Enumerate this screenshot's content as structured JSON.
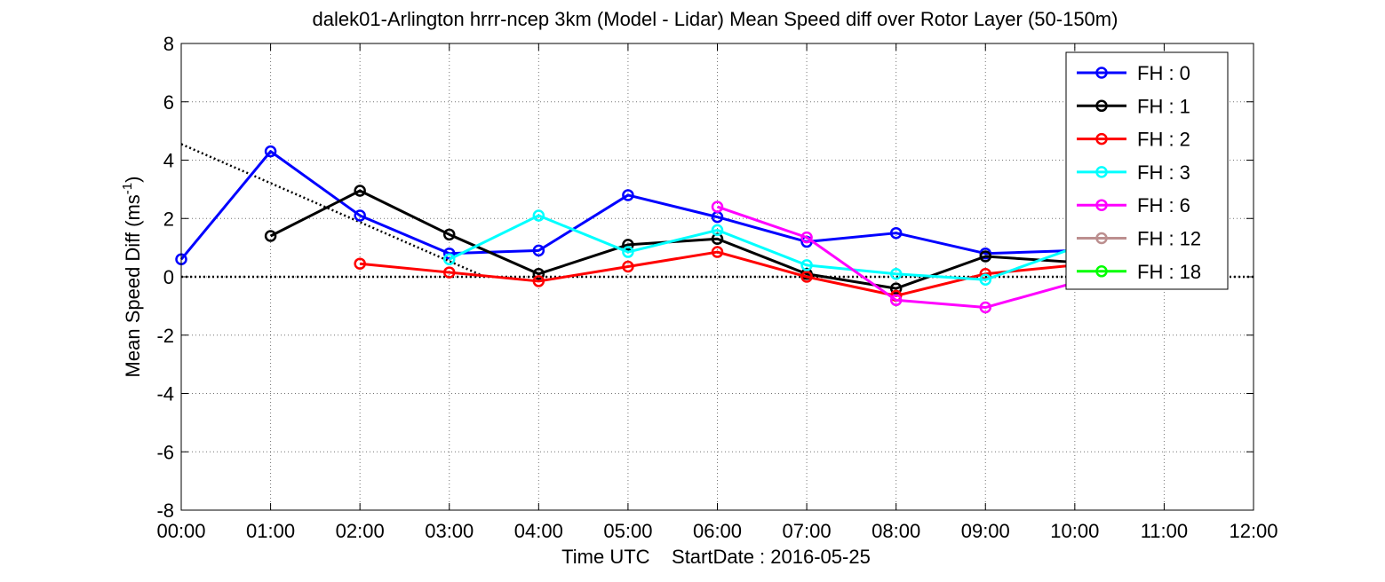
{
  "chart_data": {
    "type": "line",
    "title": "dalek01-Arlington hrrr-ncep 3km (Model - Lidar) Mean Speed diff over Rotor Layer (50-150m)",
    "xlabel": "Time UTC    StartDate : 2016-05-25",
    "ylabel_main": "Mean Speed Diff (ms",
    "ylabel_sup": "-1",
    "ylabel_tail": ")",
    "xlim": [
      0,
      12
    ],
    "ylim": [
      -8,
      8
    ],
    "x_ticks": [
      0,
      1,
      2,
      3,
      4,
      5,
      6,
      7,
      8,
      9,
      10,
      11,
      12
    ],
    "x_tick_labels": [
      "00:00",
      "01:00",
      "02:00",
      "03:00",
      "04:00",
      "05:00",
      "06:00",
      "07:00",
      "08:00",
      "09:00",
      "10:00",
      "11:00",
      "12:00"
    ],
    "y_ticks": [
      8,
      6,
      4,
      2,
      0,
      -2,
      -4,
      -6,
      -8
    ],
    "y_tick_labels": [
      "8",
      "6",
      "4",
      "2",
      "0",
      "-2",
      "-4",
      "-6",
      "-8"
    ],
    "grid": true,
    "legend_position": "top-right",
    "series": [
      {
        "name": "FH : 0",
        "color": "#0000ff",
        "x": [
          0,
          1,
          2,
          3,
          4,
          5,
          6,
          7,
          8,
          9,
          10
        ],
        "y": [
          0.6,
          4.3,
          2.1,
          0.8,
          0.9,
          2.8,
          2.05,
          1.2,
          1.5,
          0.8,
          0.9
        ]
      },
      {
        "name": "FH : 1",
        "color": "#000000",
        "x": [
          1,
          2,
          3,
          4,
          5,
          6,
          7,
          8,
          9,
          10
        ],
        "y": [
          1.4,
          2.95,
          1.45,
          0.1,
          1.1,
          1.3,
          0.1,
          -0.4,
          0.7,
          0.5
        ]
      },
      {
        "name": "FH : 2",
        "color": "#ff0000",
        "x": [
          2,
          3,
          4,
          5,
          6,
          7,
          8,
          9,
          10
        ],
        "y": [
          0.45,
          0.15,
          -0.15,
          0.35,
          0.85,
          0.0,
          -0.65,
          0.1,
          0.4
        ]
      },
      {
        "name": "FH : 3",
        "color": "#00ffff",
        "x": [
          3,
          4,
          5,
          6,
          7,
          8,
          9,
          10
        ],
        "y": [
          0.6,
          2.1,
          0.85,
          1.6,
          0.4,
          0.1,
          -0.1,
          1.0
        ]
      },
      {
        "name": "FH : 6",
        "color": "#ff00ff",
        "x": [
          6,
          7,
          8,
          9,
          10
        ],
        "y": [
          2.4,
          1.35,
          -0.8,
          -1.05,
          -0.2
        ]
      },
      {
        "name": "FH : 12",
        "color": "#bc8f8f",
        "x": [],
        "y": []
      },
      {
        "name": "FH : 18",
        "color": "#00ff00",
        "x": [],
        "y": []
      }
    ],
    "reference_lines": [
      {
        "style": "dotted",
        "color": "#000000",
        "x": [
          0,
          12
        ],
        "y": [
          0,
          0
        ]
      },
      {
        "style": "dotted",
        "color": "#000000",
        "x": [
          0,
          3.4
        ],
        "y": [
          4.55,
          0
        ]
      }
    ]
  }
}
